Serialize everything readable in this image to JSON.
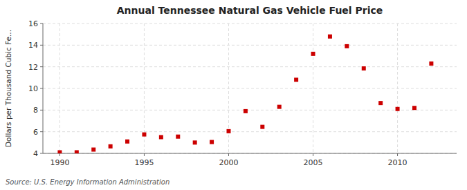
{
  "chart_data": {
    "type": "scatter",
    "title": "Annual Tennessee Natural Gas Vehicle Fuel Price",
    "ylabel": "Dollars per Thousand Cubic Fe...",
    "annotations": [
      "Source: U.S. Energy Information Administration"
    ],
    "x": [
      1990,
      1991,
      1992,
      1993,
      1994,
      1995,
      1996,
      1997,
      1998,
      1999,
      2000,
      2001,
      2002,
      2003,
      2004,
      2005,
      2006,
      2007,
      2008,
      2009,
      2010,
      2011,
      2012
    ],
    "values": [
      4.1,
      4.1,
      4.35,
      4.65,
      5.1,
      5.75,
      5.5,
      5.55,
      5.0,
      5.05,
      6.05,
      7.9,
      6.45,
      8.3,
      10.8,
      13.2,
      14.8,
      13.9,
      11.85,
      8.65,
      8.1,
      8.2,
      12.3
    ],
    "color": "#cc0000",
    "marker": "square",
    "xlim": [
      1989,
      2013.5
    ],
    "ylim": [
      4,
      16
    ],
    "xticks": [
      1990,
      1995,
      2000,
      2005,
      2010
    ],
    "yticks": [
      4,
      6,
      8,
      10,
      12,
      14,
      16
    ],
    "grid": true
  }
}
